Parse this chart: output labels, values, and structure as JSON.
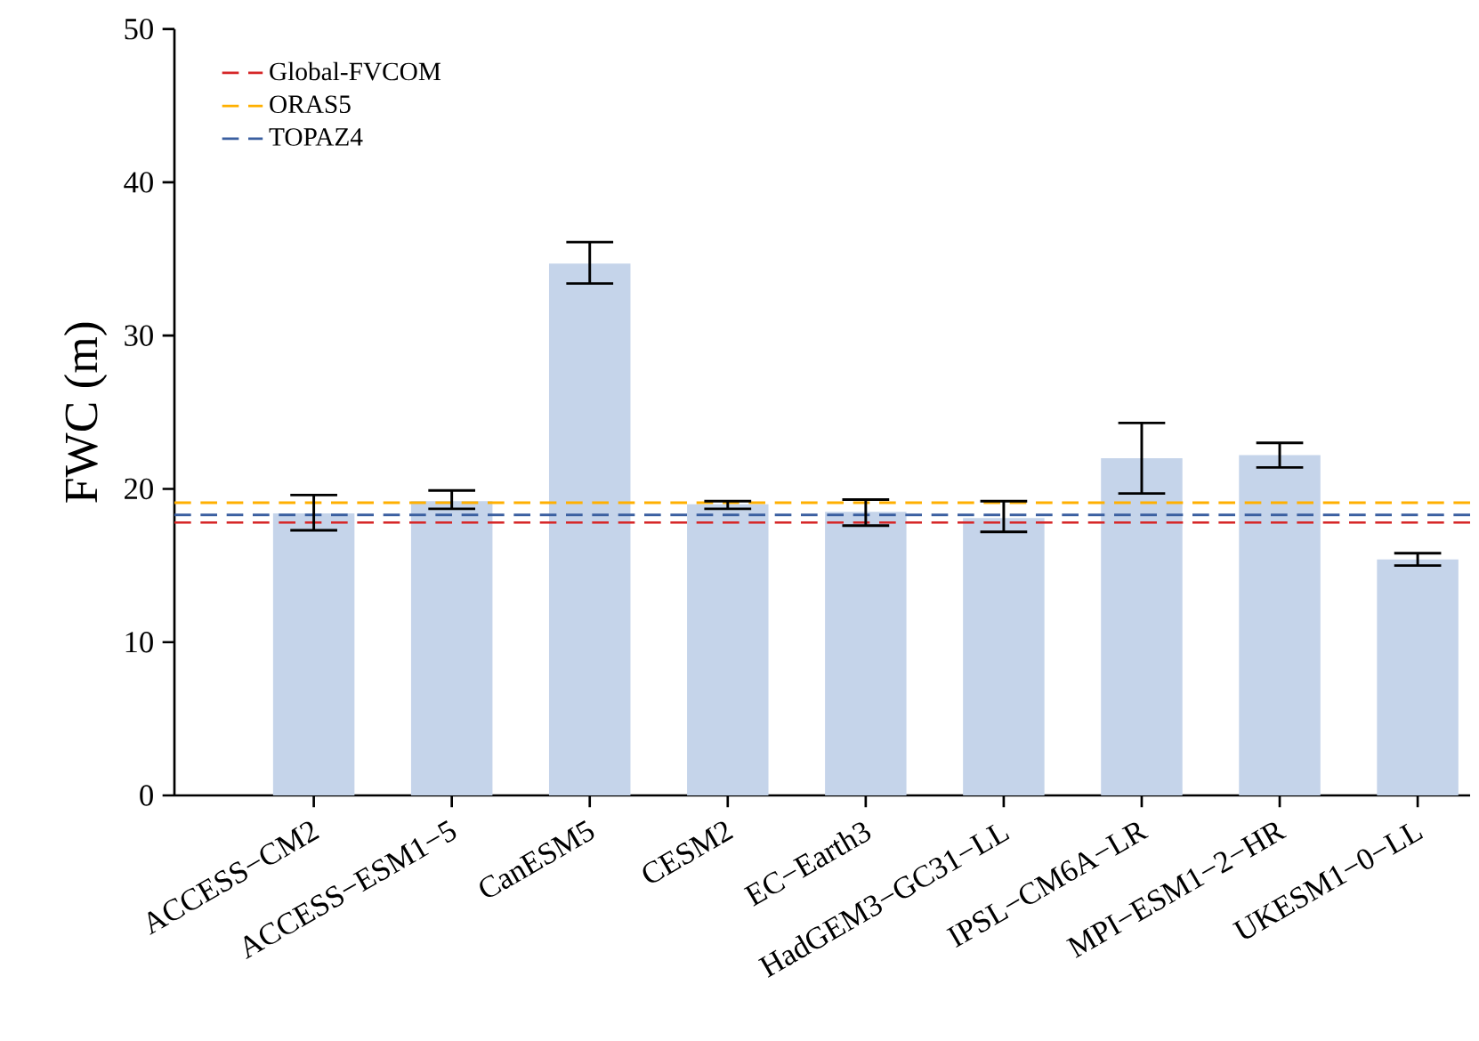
{
  "chart_data": {
    "type": "bar",
    "ylabel": "FWC (m)",
    "categories": [
      "ACCESS−CM2",
      "ACCESS−ESM1−5",
      "CanESM5",
      "CESM2",
      "EC−Earth3",
      "HadGEM3−GC31−LL",
      "IPSL−CM6A−LR",
      "MPI−ESM1−2−HR",
      "UKESM1−0−LL"
    ],
    "values": [
      18.4,
      19.2,
      34.7,
      19.0,
      18.5,
      18.1,
      22.0,
      22.2,
      15.4
    ],
    "errors": [
      [
        17.3,
        19.6
      ],
      [
        18.7,
        19.9
      ],
      [
        33.4,
        36.1
      ],
      [
        18.7,
        19.2
      ],
      [
        17.6,
        19.3
      ],
      [
        17.2,
        19.2
      ],
      [
        19.7,
        24.3
      ],
      [
        21.4,
        23.0
      ],
      [
        15.0,
        15.8
      ]
    ],
    "color": "#c5d4ea",
    "ylim": [
      0,
      50
    ],
    "yticks": [
      0,
      10,
      20,
      30,
      40,
      50
    ],
    "ref_lines": [
      {
        "axis": "y",
        "value": 17.8,
        "label": "Global-FVCOM",
        "color": "#d62728",
        "line_style": "dashed"
      },
      {
        "axis": "y",
        "value": 19.1,
        "label": "ORAS5",
        "color": "#ffb000",
        "line_style": "dashed"
      },
      {
        "axis": "y",
        "value": 18.3,
        "label": "TOPAZ4",
        "color": "#3a5fa0",
        "line_style": "dashed"
      }
    ],
    "legend": "top left",
    "grid": false
  }
}
